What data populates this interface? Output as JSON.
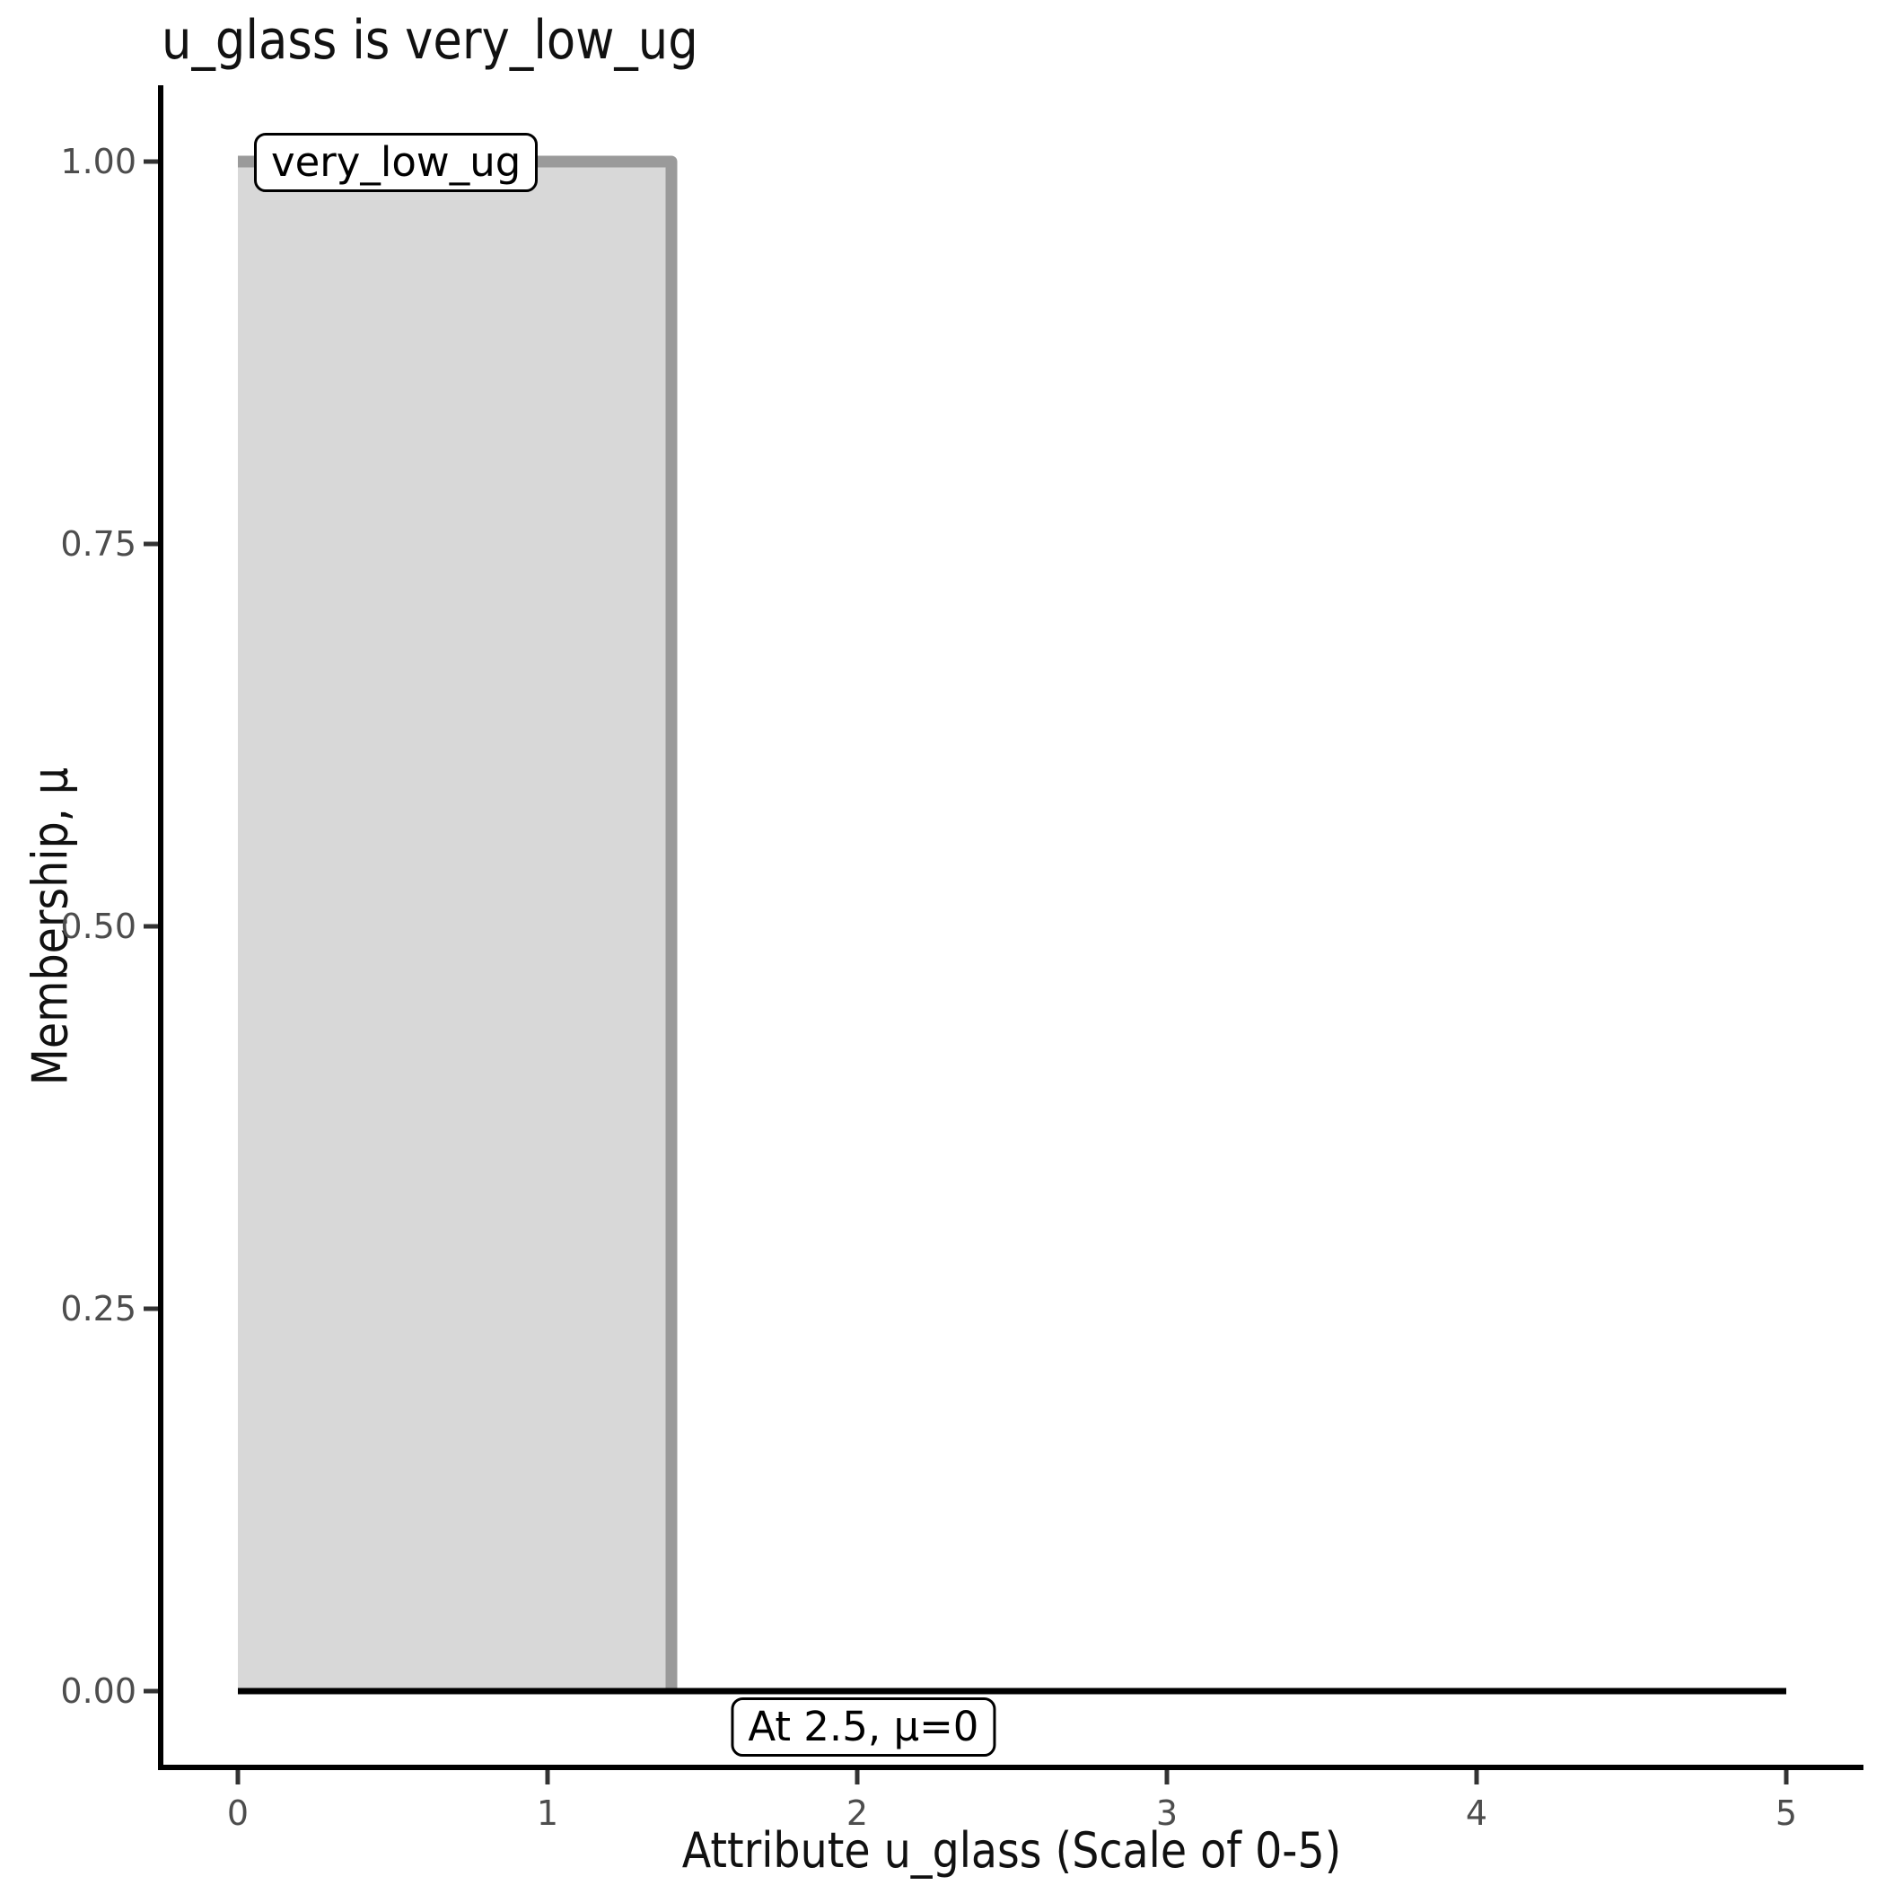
{
  "title": "u_glass is very_low_ug",
  "chart_data": {
    "type": "area",
    "title": "u_glass is very_low_ug",
    "xlabel": "Attribute u_glass (Scale of 0-5)",
    "ylabel": "Membership, μ",
    "xlim": [
      0,
      5
    ],
    "ylim": [
      0,
      1
    ],
    "x_ticks": [
      "0",
      "1",
      "2",
      "3",
      "4",
      "5"
    ],
    "y_ticks": [
      "1.00",
      "0.75",
      "0.50",
      "0.25",
      "0.00"
    ],
    "grid": false,
    "legend": false,
    "series": [
      {
        "name": "very_low_ug membership function",
        "points": [
          [
            0,
            1
          ],
          [
            1.4,
            1
          ],
          [
            1.4,
            0
          ]
        ],
        "line_color": "#9a9a9a",
        "fill_color": "#d8d8d8"
      },
      {
        "name": "zero baseline",
        "points": [
          [
            0,
            0
          ],
          [
            5,
            0
          ]
        ],
        "line_color": "#000000"
      }
    ],
    "annotations": [
      {
        "label": "very_low_ug",
        "x": 0.052,
        "y": 1.0,
        "align": "left"
      },
      {
        "label": "At 2.5, μ=0",
        "x": 2.02,
        "y": -0.023,
        "align": "center"
      }
    ],
    "colors": {
      "axis_line": "#000000",
      "tick_mark": "#333333",
      "tick_label": "#4d4d4d",
      "title_text": "#111111"
    }
  }
}
